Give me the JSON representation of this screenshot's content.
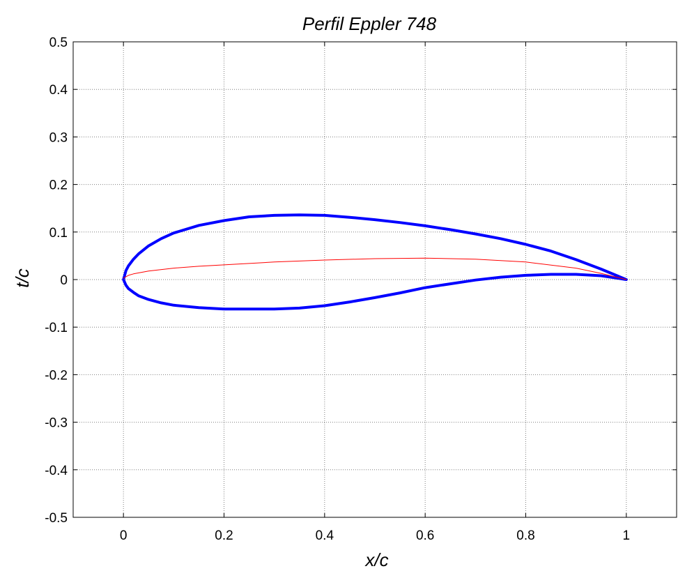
{
  "chart_data": {
    "type": "line",
    "title": "Perfil Eppler 748",
    "xlabel": "x/c",
    "ylabel": "t/c",
    "xlim": [
      -0.1,
      1.1
    ],
    "ylim": [
      -0.5,
      0.5
    ],
    "grid": true,
    "xticks": [
      0,
      0.2,
      0.4,
      0.6,
      0.8,
      1
    ],
    "xtick_labels": [
      "0",
      "0.2",
      "0.4",
      "0.6",
      "0.8",
      "1"
    ],
    "yticks": [
      -0.5,
      -0.4,
      -0.3,
      -0.2,
      -0.1,
      0,
      0.1,
      0.2,
      0.3,
      0.4,
      0.5
    ],
    "ytick_labels": [
      "-0.5",
      "-0.4",
      "-0.3",
      "-0.2",
      "-0.1",
      "0",
      "0.1",
      "0.2",
      "0.3",
      "0.4",
      "0.5"
    ],
    "series": [
      {
        "color": "#0000ff",
        "style": "thick",
        "x": [
          1.0,
          0.95,
          0.9,
          0.85,
          0.8,
          0.75,
          0.7,
          0.65,
          0.6,
          0.55,
          0.5,
          0.45,
          0.4,
          0.35,
          0.3,
          0.25,
          0.2,
          0.15,
          0.1,
          0.075,
          0.05,
          0.03,
          0.02,
          0.01,
          0.005,
          0.0,
          0.005,
          0.01,
          0.02,
          0.03,
          0.05,
          0.075,
          0.1,
          0.15,
          0.2,
          0.25,
          0.3,
          0.35,
          0.4,
          0.45,
          0.5,
          0.55,
          0.6,
          0.65,
          0.7,
          0.75,
          0.8,
          0.85,
          0.9,
          0.95,
          1.0
        ],
        "y": [
          0.0,
          0.022,
          0.042,
          0.06,
          0.074,
          0.086,
          0.096,
          0.105,
          0.113,
          0.12,
          0.126,
          0.131,
          0.135,
          0.136,
          0.135,
          0.132,
          0.124,
          0.114,
          0.098,
          0.086,
          0.071,
          0.054,
          0.043,
          0.029,
          0.019,
          0.0,
          -0.012,
          -0.019,
          -0.027,
          -0.034,
          -0.042,
          -0.049,
          -0.054,
          -0.059,
          -0.062,
          -0.062,
          -0.062,
          -0.06,
          -0.055,
          -0.047,
          -0.038,
          -0.028,
          -0.017,
          -0.009,
          -0.001,
          0.005,
          0.009,
          0.011,
          0.011,
          0.008,
          0.0
        ]
      },
      {
        "color": "#ff0000",
        "style": "thin",
        "x": [
          0.0,
          0.01,
          0.02,
          0.05,
          0.1,
          0.15,
          0.2,
          0.3,
          0.4,
          0.5,
          0.6,
          0.7,
          0.8,
          0.9,
          0.95,
          1.0
        ],
        "y": [
          0.003,
          0.009,
          0.012,
          0.018,
          0.024,
          0.028,
          0.031,
          0.037,
          0.041,
          0.044,
          0.045,
          0.043,
          0.037,
          0.024,
          0.013,
          0.0
        ]
      }
    ]
  }
}
